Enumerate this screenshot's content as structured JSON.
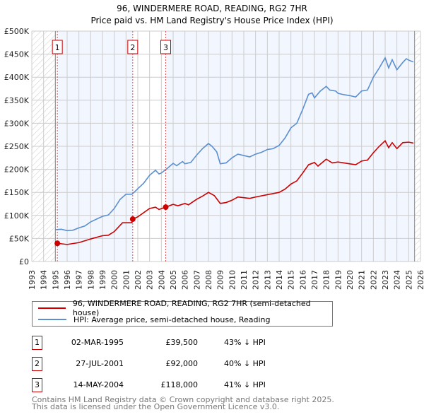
{
  "chart_data": {
    "type": "line",
    "title": "96, WINDERMERE ROAD, READING, RG2 7HR",
    "subtitle": "Price paid vs. HM Land Registry's House Price Index (HPI)",
    "xlim": [
      1993,
      2026
    ],
    "ylim": [
      0,
      500000
    ],
    "x_ticks": [
      "1993",
      "1994",
      "1995",
      "1996",
      "1997",
      "1998",
      "1999",
      "2000",
      "2001",
      "2002",
      "2003",
      "2004",
      "2005",
      "2006",
      "2007",
      "2008",
      "2009",
      "2010",
      "2011",
      "2012",
      "2013",
      "2014",
      "2015",
      "2016",
      "2017",
      "2018",
      "2019",
      "2020",
      "2021",
      "2022",
      "2023",
      "2024",
      "2025",
      "2026"
    ],
    "y_ticks": [
      {
        "v": 0,
        "label": "£0"
      },
      {
        "v": 50000,
        "label": "£50K"
      },
      {
        "v": 100000,
        "label": "£100K"
      },
      {
        "v": 150000,
        "label": "£150K"
      },
      {
        "v": 200000,
        "label": "£200K"
      },
      {
        "v": 250000,
        "label": "£250K"
      },
      {
        "v": 300000,
        "label": "£300K"
      },
      {
        "v": 350000,
        "label": "£350K"
      },
      {
        "v": 400000,
        "label": "£400K"
      },
      {
        "v": 450000,
        "label": "£450K"
      },
      {
        "v": 500000,
        "label": "£500K"
      }
    ],
    "grid": true,
    "hatched_ranges": [
      [
        1993,
        1995.0
      ],
      [
        2025.5,
        2026
      ]
    ],
    "shaded_ranges": [
      [
        1995.17,
        2001.57
      ],
      [
        2004.37,
        2025.5
      ]
    ],
    "series": [
      {
        "name": "96, WINDERMERE ROAD, READING, RG2 7HR (semi-detached house)",
        "color": "#cc0000",
        "points": [
          [
            1995.17,
            39500
          ],
          [
            1996,
            37000
          ],
          [
            1997,
            41000
          ],
          [
            1998,
            49000
          ],
          [
            1999,
            56000
          ],
          [
            1999.5,
            57000
          ],
          [
            2000,
            65000
          ],
          [
            2000.7,
            84000
          ],
          [
            2001.5,
            84000
          ],
          [
            2001.57,
            92000
          ],
          [
            2002,
            97000
          ],
          [
            2003,
            115000
          ],
          [
            2003.5,
            118000
          ],
          [
            2003.8,
            113000
          ],
          [
            2004.37,
            118000
          ],
          [
            2005,
            124000
          ],
          [
            2005.4,
            121000
          ],
          [
            2006,
            126000
          ],
          [
            2006.3,
            123000
          ],
          [
            2007,
            135000
          ],
          [
            2007.5,
            142000
          ],
          [
            2008,
            150000
          ],
          [
            2008.5,
            143000
          ],
          [
            2009,
            126000
          ],
          [
            2009.5,
            128000
          ],
          [
            2010,
            133000
          ],
          [
            2010.5,
            140000
          ],
          [
            2011.5,
            137000
          ],
          [
            2012,
            140000
          ],
          [
            2013,
            145000
          ],
          [
            2014,
            150000
          ],
          [
            2014.5,
            157000
          ],
          [
            2015,
            168000
          ],
          [
            2015.5,
            175000
          ],
          [
            2016,
            192000
          ],
          [
            2016.5,
            210000
          ],
          [
            2017,
            215000
          ],
          [
            2017.3,
            207000
          ],
          [
            2018,
            222000
          ],
          [
            2018.5,
            214000
          ],
          [
            2019,
            216000
          ],
          [
            2020,
            212000
          ],
          [
            2020.5,
            210000
          ],
          [
            2021,
            218000
          ],
          [
            2021.5,
            220000
          ],
          [
            2022,
            236000
          ],
          [
            2022.5,
            250000
          ],
          [
            2023,
            262000
          ],
          [
            2023.3,
            247000
          ],
          [
            2023.6,
            258000
          ],
          [
            2024,
            245000
          ],
          [
            2024.5,
            258000
          ],
          [
            2025,
            259000
          ],
          [
            2025.4,
            257000
          ]
        ]
      },
      {
        "name": "HPI: Average price, semi-detached house, Reading",
        "color": "#5b8fd0",
        "points": [
          [
            1995.0,
            69000
          ],
          [
            1995.5,
            70000
          ],
          [
            1996,
            67000
          ],
          [
            1996.5,
            68000
          ],
          [
            1997,
            73000
          ],
          [
            1997.5,
            77000
          ],
          [
            1998,
            86000
          ],
          [
            1998.5,
            92000
          ],
          [
            1999,
            98000
          ],
          [
            1999.5,
            101000
          ],
          [
            2000,
            115000
          ],
          [
            2000.5,
            135000
          ],
          [
            2001,
            146000
          ],
          [
            2001.5,
            146000
          ],
          [
            2001.8,
            153000
          ],
          [
            2002,
            158000
          ],
          [
            2002.5,
            170000
          ],
          [
            2003,
            187000
          ],
          [
            2003.5,
            198000
          ],
          [
            2003.8,
            190000
          ],
          [
            2004,
            192000
          ],
          [
            2004.5,
            202000
          ],
          [
            2005,
            213000
          ],
          [
            2005.3,
            208000
          ],
          [
            2005.8,
            217000
          ],
          [
            2006,
            212000
          ],
          [
            2006.5,
            215000
          ],
          [
            2007,
            231000
          ],
          [
            2007.5,
            245000
          ],
          [
            2008,
            256000
          ],
          [
            2008.3,
            250000
          ],
          [
            2008.7,
            238000
          ],
          [
            2009,
            212000
          ],
          [
            2009.5,
            214000
          ],
          [
            2010,
            225000
          ],
          [
            2010.5,
            233000
          ],
          [
            2011,
            230000
          ],
          [
            2011.5,
            227000
          ],
          [
            2012,
            233000
          ],
          [
            2012.5,
            237000
          ],
          [
            2013,
            243000
          ],
          [
            2013.5,
            245000
          ],
          [
            2014,
            252000
          ],
          [
            2014.5,
            268000
          ],
          [
            2015,
            290000
          ],
          [
            2015.5,
            300000
          ],
          [
            2016,
            330000
          ],
          [
            2016.5,
            363000
          ],
          [
            2016.8,
            366000
          ],
          [
            2017,
            355000
          ],
          [
            2017.5,
            370000
          ],
          [
            2018,
            380000
          ],
          [
            2018.3,
            372000
          ],
          [
            2018.8,
            370000
          ],
          [
            2019,
            365000
          ],
          [
            2019.5,
            362000
          ],
          [
            2020,
            360000
          ],
          [
            2020.5,
            357000
          ],
          [
            2021,
            370000
          ],
          [
            2021.5,
            372000
          ],
          [
            2022,
            400000
          ],
          [
            2022.5,
            420000
          ],
          [
            2023,
            442000
          ],
          [
            2023.3,
            420000
          ],
          [
            2023.6,
            438000
          ],
          [
            2024,
            416000
          ],
          [
            2024.5,
            432000
          ],
          [
            2024.8,
            440000
          ],
          [
            2025,
            437000
          ],
          [
            2025.4,
            433000
          ]
        ]
      }
    ],
    "sales": [
      {
        "id": "1",
        "x": 1995.17,
        "price": 39500,
        "date": "02-MAR-1995",
        "price_label": "£39,500",
        "hpi": "43% ↓ HPI"
      },
      {
        "id": "2",
        "x": 2001.57,
        "price": 92000,
        "date": "27-JUL-2001",
        "price_label": "£92,000",
        "hpi": "40% ↓ HPI"
      },
      {
        "id": "3",
        "x": 2004.37,
        "price": 118000,
        "date": "14-MAY-2004",
        "price_label": "£118,000",
        "hpi": "41% ↓ HPI"
      }
    ]
  },
  "footer": {
    "line1": "Contains HM Land Registry data © Crown copyright and database right 2025.",
    "line2": "This data is licensed under the Open Government Licence v3.0."
  }
}
